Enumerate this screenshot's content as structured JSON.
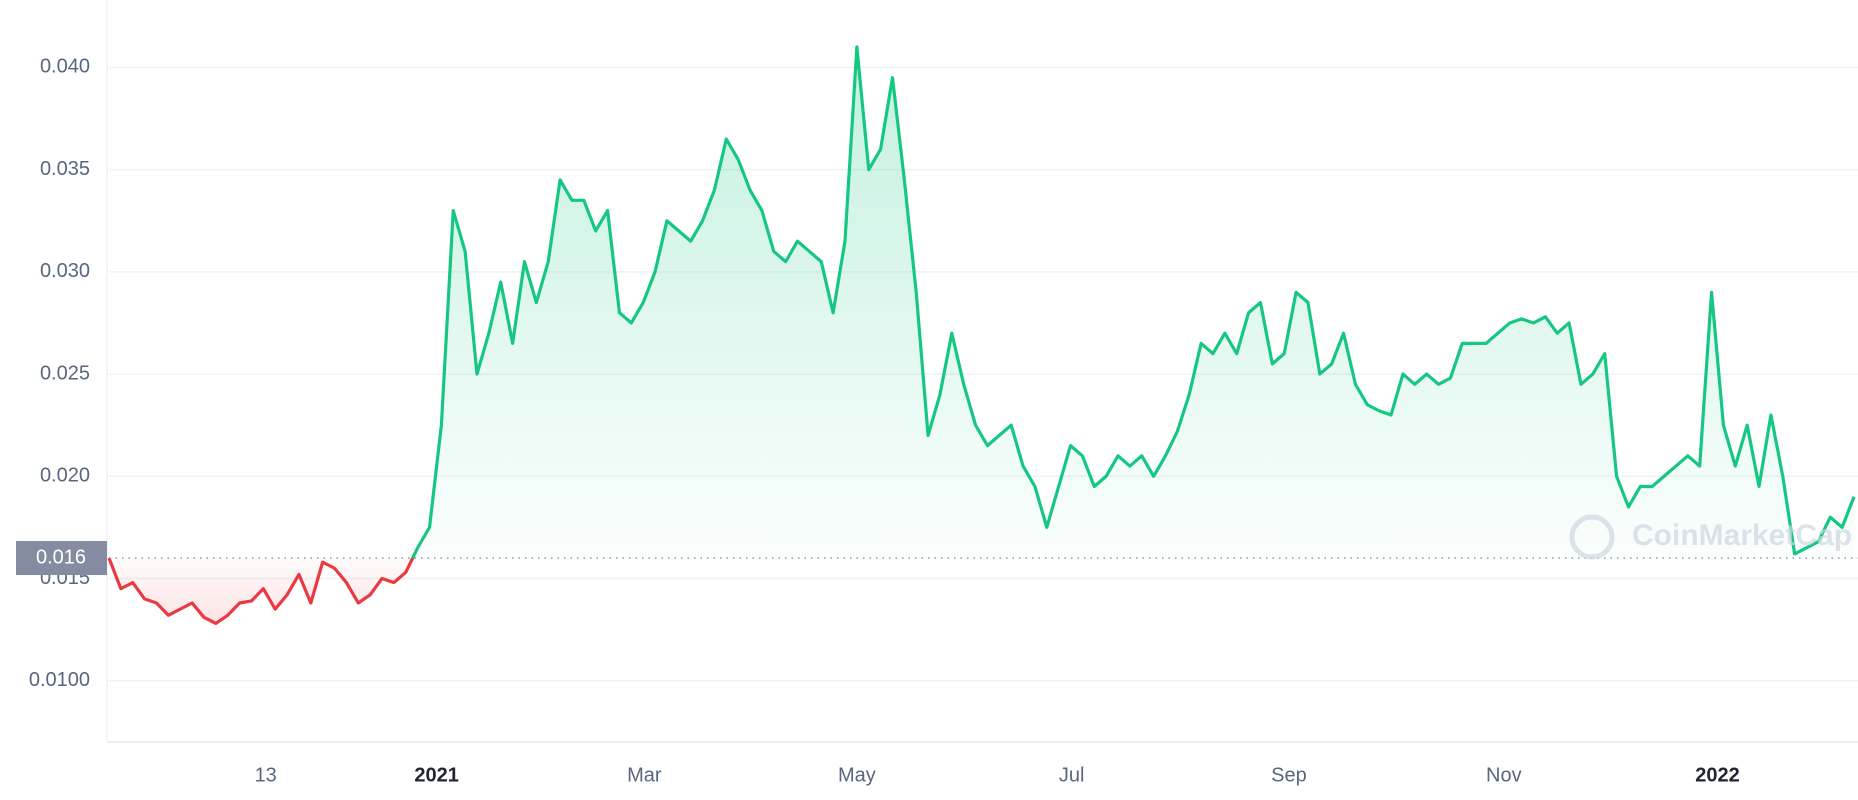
{
  "chart_data": {
    "type": "line",
    "values": [
      0.016,
      0.0145,
      0.0148,
      0.014,
      0.0138,
      0.0132,
      0.0135,
      0.0138,
      0.0131,
      0.0128,
      0.0132,
      0.0138,
      0.0139,
      0.0145,
      0.0135,
      0.0142,
      0.0152,
      0.0138,
      0.0158,
      0.0155,
      0.0148,
      0.0138,
      0.0142,
      0.015,
      0.0148,
      0.0153,
      0.0165,
      0.0175,
      0.0225,
      0.033,
      0.031,
      0.025,
      0.027,
      0.0295,
      0.0265,
      0.0305,
      0.0285,
      0.0305,
      0.0345,
      0.0335,
      0.0335,
      0.032,
      0.033,
      0.028,
      0.0275,
      0.0285,
      0.03,
      0.0325,
      0.032,
      0.0315,
      0.0325,
      0.034,
      0.0365,
      0.0355,
      0.034,
      0.033,
      0.031,
      0.0305,
      0.0315,
      0.031,
      0.0305,
      0.028,
      0.0315,
      0.041,
      0.035,
      0.036,
      0.0395,
      0.0345,
      0.029,
      0.022,
      0.024,
      0.027,
      0.0245,
      0.0225,
      0.0215,
      0.022,
      0.0225,
      0.0205,
      0.0195,
      0.0175,
      0.0195,
      0.0215,
      0.021,
      0.0195,
      0.02,
      0.021,
      0.0205,
      0.021,
      0.02,
      0.021,
      0.0222,
      0.024,
      0.0265,
      0.026,
      0.027,
      0.026,
      0.028,
      0.0285,
      0.0255,
      0.026,
      0.029,
      0.0285,
      0.025,
      0.0255,
      0.027,
      0.0245,
      0.0235,
      0.0232,
      0.023,
      0.025,
      0.0245,
      0.025,
      0.0245,
      0.0248,
      0.0265,
      0.0265,
      0.0265,
      0.027,
      0.0275,
      0.0277,
      0.0275,
      0.0278,
      0.027,
      0.0275,
      0.0245,
      0.025,
      0.026,
      0.02,
      0.0185,
      0.0195,
      0.0195,
      0.02,
      0.0205,
      0.021,
      0.0205,
      0.029,
      0.0225,
      0.0205,
      0.0225,
      0.0195,
      0.023,
      0.02,
      0.0162,
      0.0165,
      0.0168,
      0.018,
      0.0175,
      0.019
    ],
    "xticks": [
      {
        "value": 13.2,
        "label": "13"
      },
      {
        "value": 27.6,
        "label": "2021"
      },
      {
        "value": 45.1,
        "label": "Mar"
      },
      {
        "value": 63,
        "label": "May"
      },
      {
        "value": 81.1,
        "label": "Jul"
      },
      {
        "value": 99.4,
        "label": "Sep"
      },
      {
        "value": 117.5,
        "label": "Nov"
      },
      {
        "value": 135.5,
        "label": "2022"
      }
    ],
    "ylim": [
      0.007,
      0.0433
    ],
    "yticks": [
      {
        "value": 0.01,
        "label": "0.0100"
      },
      0.015,
      {
        "value": 0.02,
        "label": "0.020"
      },
      0.025,
      {
        "value": 0.03,
        "label": "0.030"
      },
      0.035,
      {
        "value": 0.04,
        "label": "0.040"
      }
    ],
    "baseline": 0.016,
    "color_up": "#16c784",
    "color_down": "#ea3943",
    "grid": true,
    "watermark": "CoinMarketCap"
  }
}
